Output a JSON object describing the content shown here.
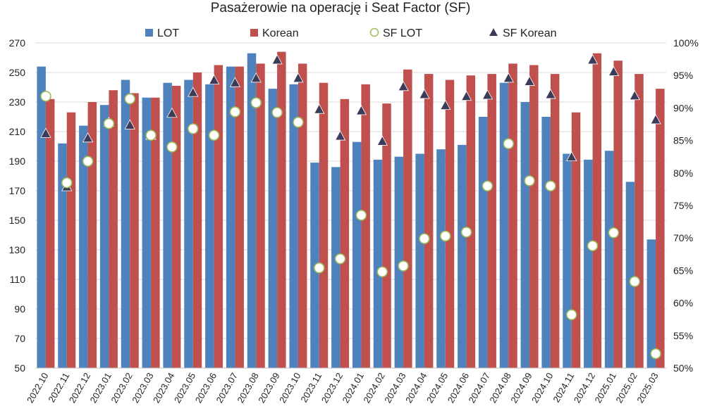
{
  "chart_data": {
    "type": "bar",
    "title": "Pasażerowie na operację i Seat Factor (SF)",
    "categories": [
      "2022.10",
      "2022.11",
      "2022.12",
      "2023.01",
      "2023.02",
      "2023.03",
      "2023.04",
      "2023.05",
      "2023.06",
      "2023.07",
      "2023.08",
      "2023.09",
      "2023.10",
      "2023.11",
      "2023.12",
      "2024.01",
      "2024.02",
      "2024.03",
      "2024.04",
      "2024.05",
      "2024.06",
      "2024.07",
      "2024.08",
      "2024.09",
      "2024.10",
      "2024.11",
      "2024.12",
      "2025.01",
      "2025.02",
      "2025.03"
    ],
    "y_left": {
      "range": [
        50,
        270
      ],
      "ticks": [
        "50",
        "70",
        "90",
        "110",
        "130",
        "150",
        "170",
        "190",
        "210",
        "230",
        "250",
        "270"
      ]
    },
    "y_right": {
      "range": [
        0.5,
        1.0
      ],
      "ticks": [
        "50%",
        "55%",
        "60%",
        "65%",
        "70%",
        "75%",
        "80%",
        "85%",
        "90%",
        "95%",
        "100%"
      ]
    },
    "series": [
      {
        "name": "LOT",
        "kind": "bar",
        "axis": "left",
        "color": "#4f81bd",
        "values": [
          254,
          202,
          214,
          228,
          245,
          233,
          243,
          245,
          242,
          254,
          263,
          239,
          242,
          189,
          186,
          203,
          191,
          193,
          195,
          198,
          201,
          220,
          243,
          230,
          220,
          195,
          191,
          197,
          176,
          137
        ]
      },
      {
        "name": "Korean",
        "kind": "bar",
        "axis": "left",
        "color": "#c0504d",
        "values": [
          232,
          223,
          230,
          238,
          236,
          233,
          241,
          250,
          255,
          254,
          256,
          264,
          256,
          243,
          232,
          242,
          229,
          252,
          249,
          245,
          248,
          249,
          256,
          255,
          249,
          223,
          263,
          258,
          249,
          239
        ]
      },
      {
        "name": "SF LOT",
        "kind": "marker",
        "marker": "circle",
        "axis": "right",
        "color": "#9bbb59",
        "values": [
          0.918,
          0.785,
          0.818,
          0.876,
          0.914,
          0.858,
          0.84,
          0.868,
          0.858,
          0.894,
          0.908,
          0.893,
          0.878,
          0.654,
          0.668,
          0.735,
          0.648,
          0.657,
          0.699,
          0.703,
          0.709,
          0.78,
          0.845,
          0.788,
          0.78,
          0.582,
          0.688,
          0.708,
          0.633,
          0.522
        ]
      },
      {
        "name": "SF Korean",
        "kind": "marker",
        "marker": "triangle",
        "axis": "right",
        "color": "#3b3c5a",
        "values": [
          0.86,
          0.778,
          0.853,
          0.877,
          0.873,
          0.857,
          0.891,
          0.923,
          0.942,
          0.938,
          0.945,
          0.973,
          0.945,
          0.897,
          0.856,
          0.895,
          0.848,
          0.932,
          0.92,
          0.903,
          0.917,
          0.919,
          0.945,
          0.94,
          0.92,
          0.824,
          0.973,
          0.955,
          0.918,
          0.881
        ]
      }
    ],
    "legend": {
      "position": "top",
      "entries": [
        "LOT",
        "Korean",
        "SF LOT",
        "SF Korean"
      ]
    },
    "grid": true
  }
}
